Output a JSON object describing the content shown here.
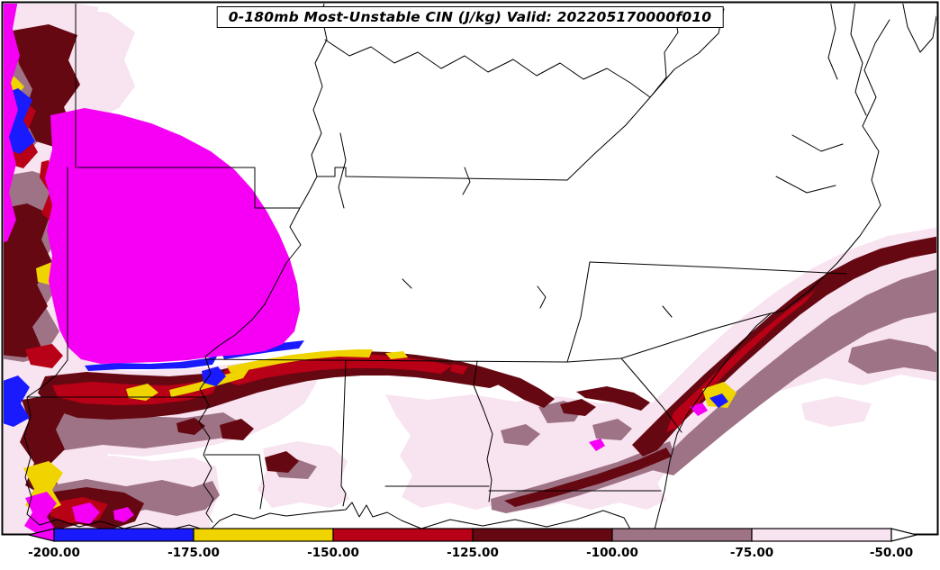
{
  "title": "0-180mb Most-Unstable CIN (J/kg) Valid: 202205170000f010",
  "palette": {
    "background": "#FFFFFF",
    "line_color": "#000000",
    "magenta": "#F500F5",
    "blue": "#1A1AFF",
    "yellow": "#EFD400",
    "red": "#B80016",
    "maroon": "#650812",
    "mauve": "#9E7385",
    "pink": "#F8E3F0"
  },
  "colorbar": {
    "ticks": [
      "-200.00",
      "-175.00",
      "-150.00",
      "-125.00",
      "-100.00",
      "-75.00",
      "-50.00"
    ],
    "segment_colors": [
      "#1A1AFF",
      "#EFD400",
      "#B80016",
      "#650812",
      "#9E7385",
      "#F8E3F0"
    ],
    "left_arrow_color": "#F500F5",
    "right_arrow_color": "#FFFFFF"
  },
  "chart_data": {
    "type": "heatmap",
    "title": "0-180mb Most-Unstable CIN (J/kg) Valid: 202205170000f010",
    "variable": "Most-Unstable CIN",
    "layer": "0-180mb",
    "units": "J/kg",
    "valid": "202205170000f010",
    "levels": [
      -200,
      -175,
      -150,
      -125,
      -100,
      -75,
      -50
    ],
    "level_labels": [
      "-200.00",
      "-175.00",
      "-150.00",
      "-125.00",
      "-100.00",
      "-75.00",
      "-50.00"
    ],
    "bin_colors_strongest_to_weakest": [
      "#F500F5",
      "#1A1AFF",
      "#EFD400",
      "#B80016",
      "#650812",
      "#9E7385",
      "#F8E3F0",
      "#FFFFFF"
    ],
    "legend_position": "bottom",
    "grid": false
  }
}
